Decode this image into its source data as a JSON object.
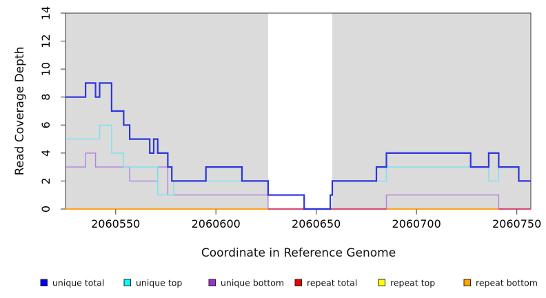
{
  "chart_data": {
    "type": "line",
    "subtype": "step-coverage",
    "xlabel": "Coordinate in Reference Genome",
    "ylabel": "Read Coverage Depth",
    "xlim": [
      2060525,
      2060757
    ],
    "ylim": [
      0,
      14
    ],
    "x_ticks": [
      2060550,
      2060600,
      2060650,
      2060700,
      2060750
    ],
    "y_ticks": [
      0,
      2,
      4,
      6,
      8,
      10,
      12,
      14
    ],
    "plot_bg": "#DBDBDB",
    "gap_region": {
      "from": 2060626,
      "to": 2060658,
      "color": "#FFFFFF"
    },
    "series": [
      {
        "name": "unique total",
        "color": "#2B35DD",
        "width": 2.2,
        "z": 7,
        "steps": [
          [
            2060525,
            8
          ],
          [
            2060535,
            9
          ],
          [
            2060540,
            8
          ],
          [
            2060542,
            9
          ],
          [
            2060548,
            7
          ],
          [
            2060554,
            6
          ],
          [
            2060557,
            5
          ],
          [
            2060567,
            4
          ],
          [
            2060569,
            5
          ],
          [
            2060571,
            4
          ],
          [
            2060576,
            3
          ],
          [
            2060578,
            2
          ],
          [
            2060595,
            3
          ],
          [
            2060613,
            2
          ],
          [
            2060626,
            1
          ],
          [
            2060644,
            0
          ],
          [
            2060657,
            1
          ],
          [
            2060658,
            2
          ],
          [
            2060680,
            3
          ],
          [
            2060685,
            4
          ],
          [
            2060727,
            3
          ],
          [
            2060736,
            4
          ],
          [
            2060741,
            3
          ],
          [
            2060751,
            2
          ]
        ]
      },
      {
        "name": "unique top",
        "color": "#76E4EE",
        "width": 1.4,
        "z": 6,
        "steps": [
          [
            2060525,
            5
          ],
          [
            2060542,
            6
          ],
          [
            2060548,
            4
          ],
          [
            2060554,
            3
          ],
          [
            2060571,
            1
          ],
          [
            2060579,
            2
          ],
          [
            2060626,
            1
          ],
          [
            2060644,
            0
          ],
          [
            2060657,
            1
          ],
          [
            2060658,
            2
          ],
          [
            2060685,
            3
          ],
          [
            2060736,
            2
          ],
          [
            2060741,
            3
          ],
          [
            2060751,
            2
          ]
        ]
      },
      {
        "name": "unique bottom",
        "color": "#B681DC",
        "width": 1.4,
        "z": 4,
        "steps": [
          [
            2060525,
            3
          ],
          [
            2060535,
            4
          ],
          [
            2060540,
            3
          ],
          [
            2060557,
            2
          ],
          [
            2060571,
            3
          ],
          [
            2060576,
            1
          ],
          [
            2060626,
            0
          ],
          [
            2060685,
            1
          ],
          [
            2060741,
            0
          ]
        ]
      },
      {
        "name": "repeat total",
        "color": "#EE1111",
        "width": 1.4,
        "z": 2,
        "steps": [
          [
            2060525,
            0
          ]
        ]
      },
      {
        "name": "repeat top",
        "color": "#FFFF00",
        "width": 1.4,
        "z": 1,
        "steps": [
          [
            2060525,
            0
          ]
        ]
      },
      {
        "name": "repeat bottom",
        "color": "#FFA41E",
        "width": 2.2,
        "z": 3,
        "steps": [
          [
            2060525,
            0
          ]
        ]
      }
    ],
    "baseline_overlays": [
      {
        "from": 2060626,
        "to": 2060685,
        "value": 0,
        "color": "#D5507C"
      },
      {
        "from": 2060741,
        "to": 2060757,
        "value": 0,
        "color": "#D5507C"
      }
    ],
    "legend": [
      {
        "label": "unique total",
        "color": "#0000EE"
      },
      {
        "label": "unique top",
        "color": "#00FFFF"
      },
      {
        "label": "unique bottom",
        "color": "#9932CC"
      },
      {
        "label": "repeat total",
        "color": "#EE0000"
      },
      {
        "label": "repeat top",
        "color": "#FFFF00"
      },
      {
        "label": "repeat bottom",
        "color": "#FFA500"
      }
    ]
  }
}
